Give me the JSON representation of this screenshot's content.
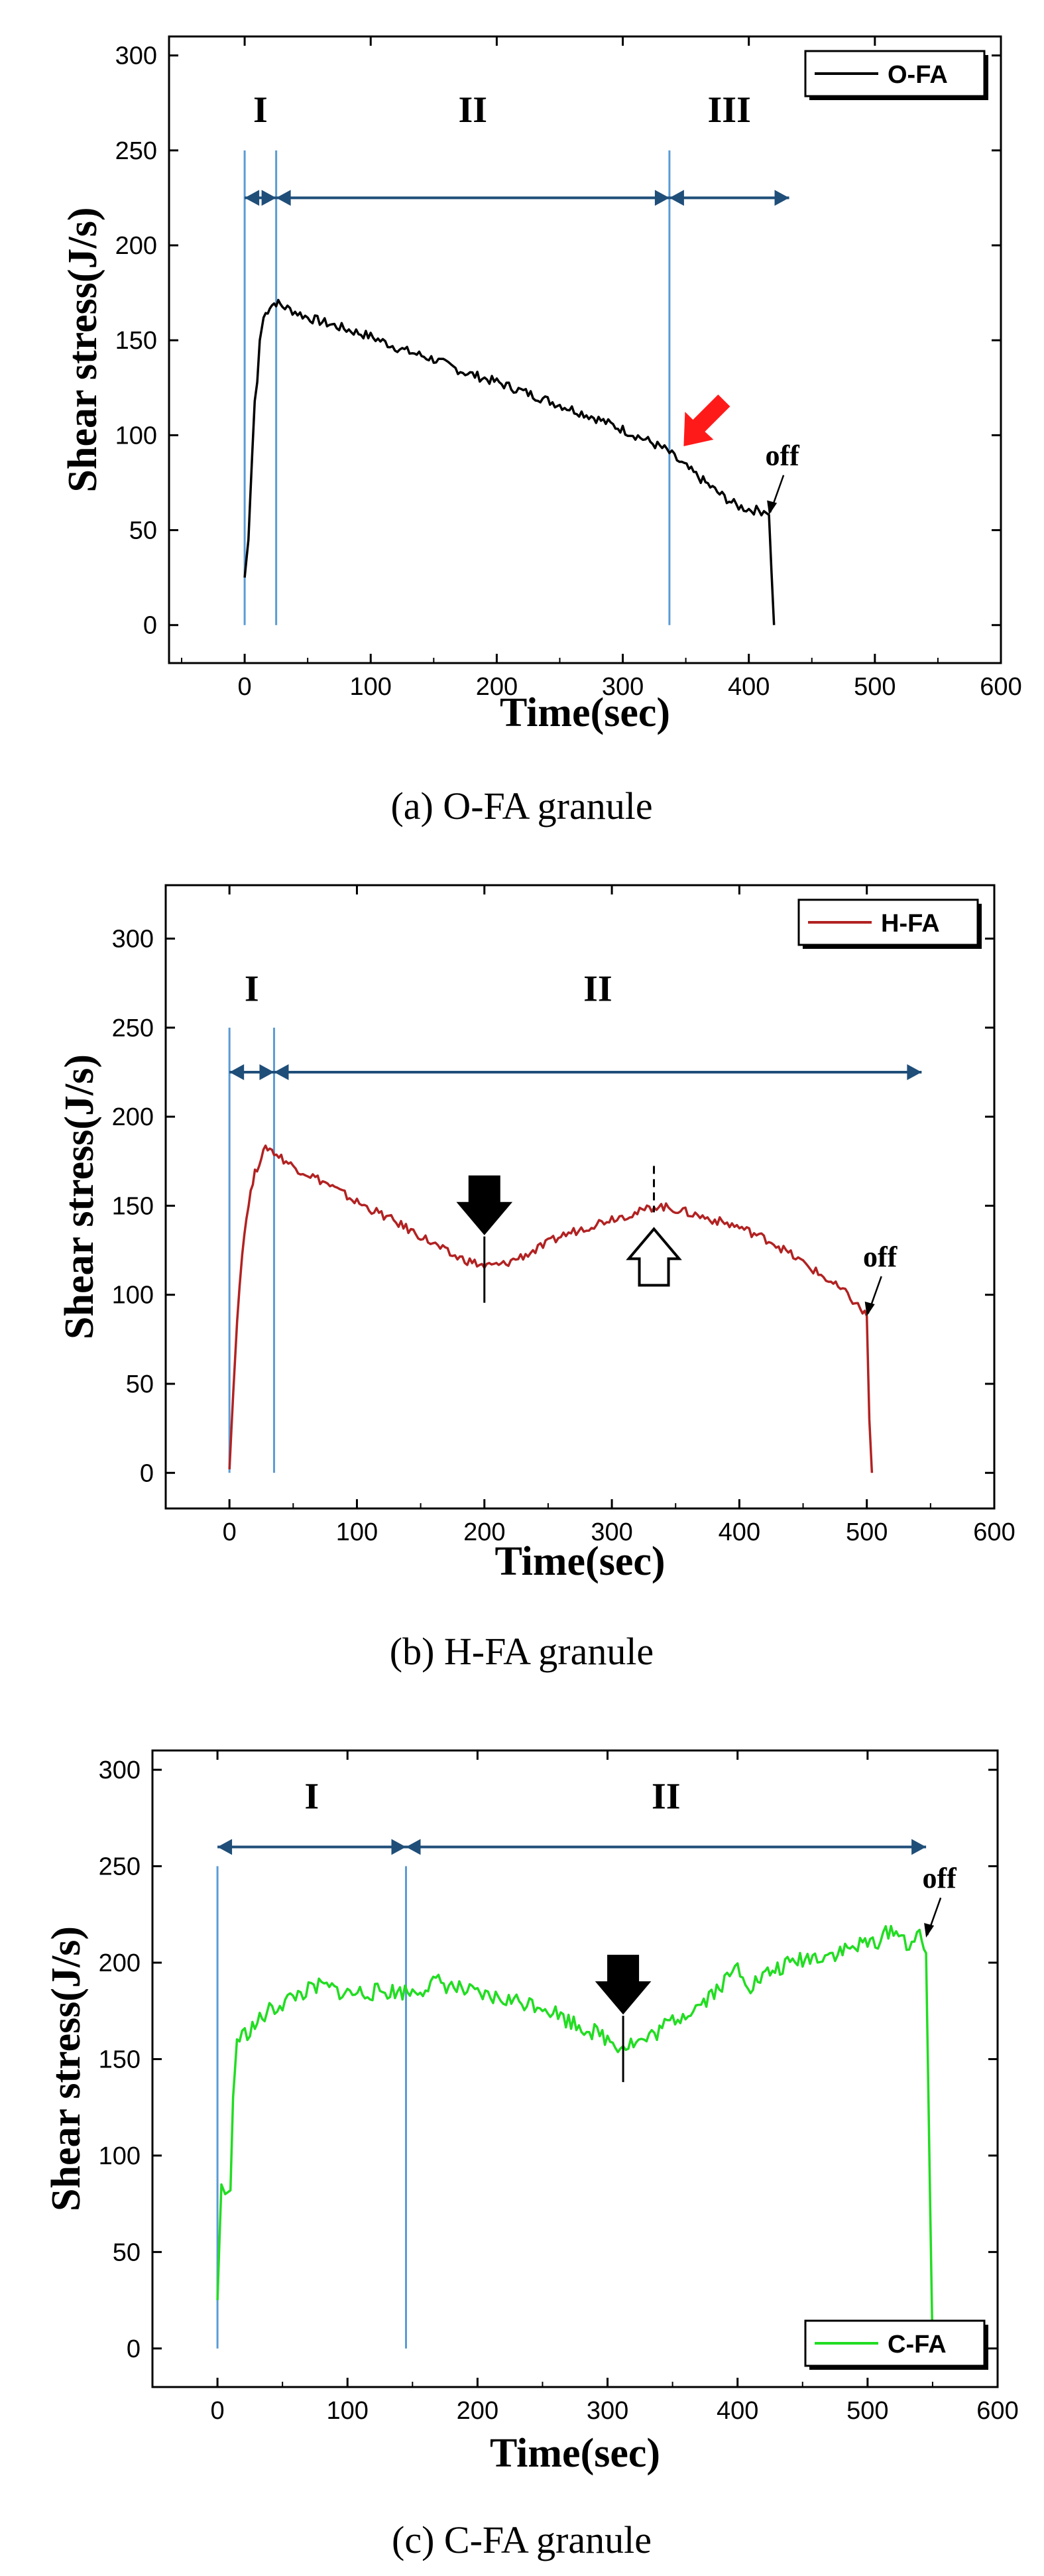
{
  "chart_data": [
    {
      "type": "line",
      "caption": "(a) O-FA granule",
      "xlabel": "Time(sec)",
      "ylabel": "Shear stress(J/s)",
      "xlim": [
        -60,
        600
      ],
      "ylim": [
        -20,
        310
      ],
      "xticks": [
        0,
        100,
        200,
        300,
        400,
        500,
        600
      ],
      "yticks": [
        0,
        50,
        100,
        150,
        200,
        250,
        300
      ],
      "legend": "top-right",
      "grid": false,
      "series": [
        {
          "name": "O-FA",
          "color": "#000000",
          "points": [
            [
              0,
              25
            ],
            [
              3,
              45
            ],
            [
              6,
              90
            ],
            [
              8,
              118
            ],
            [
              10,
              128
            ],
            [
              12,
              150
            ],
            [
              15,
              162
            ],
            [
              20,
              168
            ],
            [
              25,
              170
            ],
            [
              30,
              168
            ],
            [
              50,
              162
            ],
            [
              75,
              157
            ],
            [
              100,
              152
            ],
            [
              125,
              145
            ],
            [
              150,
              140
            ],
            [
              175,
              133
            ],
            [
              200,
              128
            ],
            [
              225,
              122
            ],
            [
              250,
              116
            ],
            [
              275,
              110
            ],
            [
              300,
              103
            ],
            [
              320,
              97
            ],
            [
              335,
              92
            ],
            [
              345,
              86
            ],
            [
              360,
              78
            ],
            [
              375,
              70
            ],
            [
              390,
              63
            ],
            [
              400,
              61
            ],
            [
              412,
              60
            ],
            [
              416,
              58
            ],
            [
              418,
              28
            ],
            [
              420,
              0
            ]
          ]
        }
      ],
      "vlines": [
        0,
        25,
        337
      ],
      "regions": [
        {
          "label": "I",
          "from": 0,
          "to": 25
        },
        {
          "label": "II",
          "from": 25,
          "to": 337
        },
        {
          "label": "III",
          "from": 337,
          "to": 432
        }
      ],
      "annotations": [
        {
          "label": "off",
          "x": 416,
          "y": 58
        },
        {
          "type": "red-arrow",
          "x": 342,
          "y": 90
        }
      ]
    },
    {
      "type": "line",
      "caption": "(b) H-FA granule",
      "xlabel": "Time(sec)",
      "ylabel": "Shear stress(J/s)",
      "xlim": [
        -50,
        600
      ],
      "ylim": [
        -20,
        330
      ],
      "xticks": [
        0,
        100,
        200,
        300,
        400,
        500,
        600
      ],
      "yticks": [
        0,
        50,
        100,
        150,
        200,
        250,
        300
      ],
      "legend": "top-right",
      "grid": false,
      "series": [
        {
          "name": "H-FA",
          "color": "#b22222",
          "points": [
            [
              0,
              2
            ],
            [
              3,
              45
            ],
            [
              6,
              85
            ],
            [
              10,
              125
            ],
            [
              15,
              152
            ],
            [
              20,
              168
            ],
            [
              25,
              178
            ],
            [
              30,
              183
            ],
            [
              35,
              180
            ],
            [
              50,
              172
            ],
            [
              75,
              163
            ],
            [
              100,
              152
            ],
            [
              125,
              143
            ],
            [
              150,
              133
            ],
            [
              175,
              122
            ],
            [
              200,
              116
            ],
            [
              215,
              117
            ],
            [
              240,
              125
            ],
            [
              260,
              133
            ],
            [
              280,
              138
            ],
            [
              300,
              143
            ],
            [
              320,
              146
            ],
            [
              335,
              150
            ],
            [
              350,
              148
            ],
            [
              375,
              143
            ],
            [
              400,
              138
            ],
            [
              425,
              130
            ],
            [
              450,
              118
            ],
            [
              470,
              108
            ],
            [
              485,
              100
            ],
            [
              495,
              92
            ],
            [
              500,
              88
            ],
            [
              502,
              30
            ],
            [
              504,
              0
            ]
          ]
        }
      ],
      "vlines": [
        0,
        35
      ],
      "regions": [
        {
          "label": "I",
          "from": 0,
          "to": 35
        },
        {
          "label": "II",
          "from": 35,
          "to": 543
        }
      ],
      "annotations": [
        {
          "label": "off",
          "x": 500,
          "y": 88
        },
        {
          "type": "black-arrow-down",
          "x": 200,
          "y": 116
        },
        {
          "type": "white-arrow-up",
          "x": 333,
          "y": 150
        }
      ]
    },
    {
      "type": "line",
      "caption": "(c) C-FA granule",
      "xlabel": "Time(sec)",
      "ylabel": "Shear stress(J/s)",
      "xlim": [
        -50,
        600
      ],
      "ylim": [
        -20,
        310
      ],
      "xticks": [
        0,
        100,
        200,
        300,
        400,
        500,
        600
      ],
      "yticks": [
        0,
        50,
        100,
        150,
        200,
        250,
        300
      ],
      "legend": "bottom-right",
      "grid": false,
      "series": [
        {
          "name": "C-FA",
          "color": "#22dd22",
          "points": [
            [
              0,
              25
            ],
            [
              3,
              85
            ],
            [
              6,
              80
            ],
            [
              10,
              82
            ],
            [
              12,
              130
            ],
            [
              15,
              160
            ],
            [
              25,
              165
            ],
            [
              40,
              175
            ],
            [
              60,
              183
            ],
            [
              80,
              188
            ],
            [
              100,
              184
            ],
            [
              125,
              185
            ],
            [
              150,
              185
            ],
            [
              170,
              190
            ],
            [
              200,
              183
            ],
            [
              230,
              180
            ],
            [
              250,
              178
            ],
            [
              270,
              170
            ],
            [
              290,
              164
            ],
            [
              310,
              157
            ],
            [
              330,
              160
            ],
            [
              350,
              170
            ],
            [
              370,
              178
            ],
            [
              390,
              190
            ],
            [
              400,
              198
            ],
            [
              410,
              188
            ],
            [
              425,
              195
            ],
            [
              450,
              202
            ],
            [
              475,
              205
            ],
            [
              500,
              210
            ],
            [
              510,
              212
            ],
            [
              520,
              218
            ],
            [
              530,
              210
            ],
            [
              540,
              213
            ],
            [
              545,
              205
            ],
            [
              548,
              80
            ],
            [
              550,
              0
            ]
          ]
        }
      ],
      "vlines": [
        0,
        145
      ],
      "regions": [
        {
          "label": "I",
          "from": 0,
          "to": 145
        },
        {
          "label": "II",
          "from": 145,
          "to": 545
        }
      ],
      "annotations": [
        {
          "label": "off",
          "x": 545,
          "y": 213
        },
        {
          "type": "black-arrow-down",
          "x": 312,
          "y": 157
        }
      ]
    }
  ]
}
